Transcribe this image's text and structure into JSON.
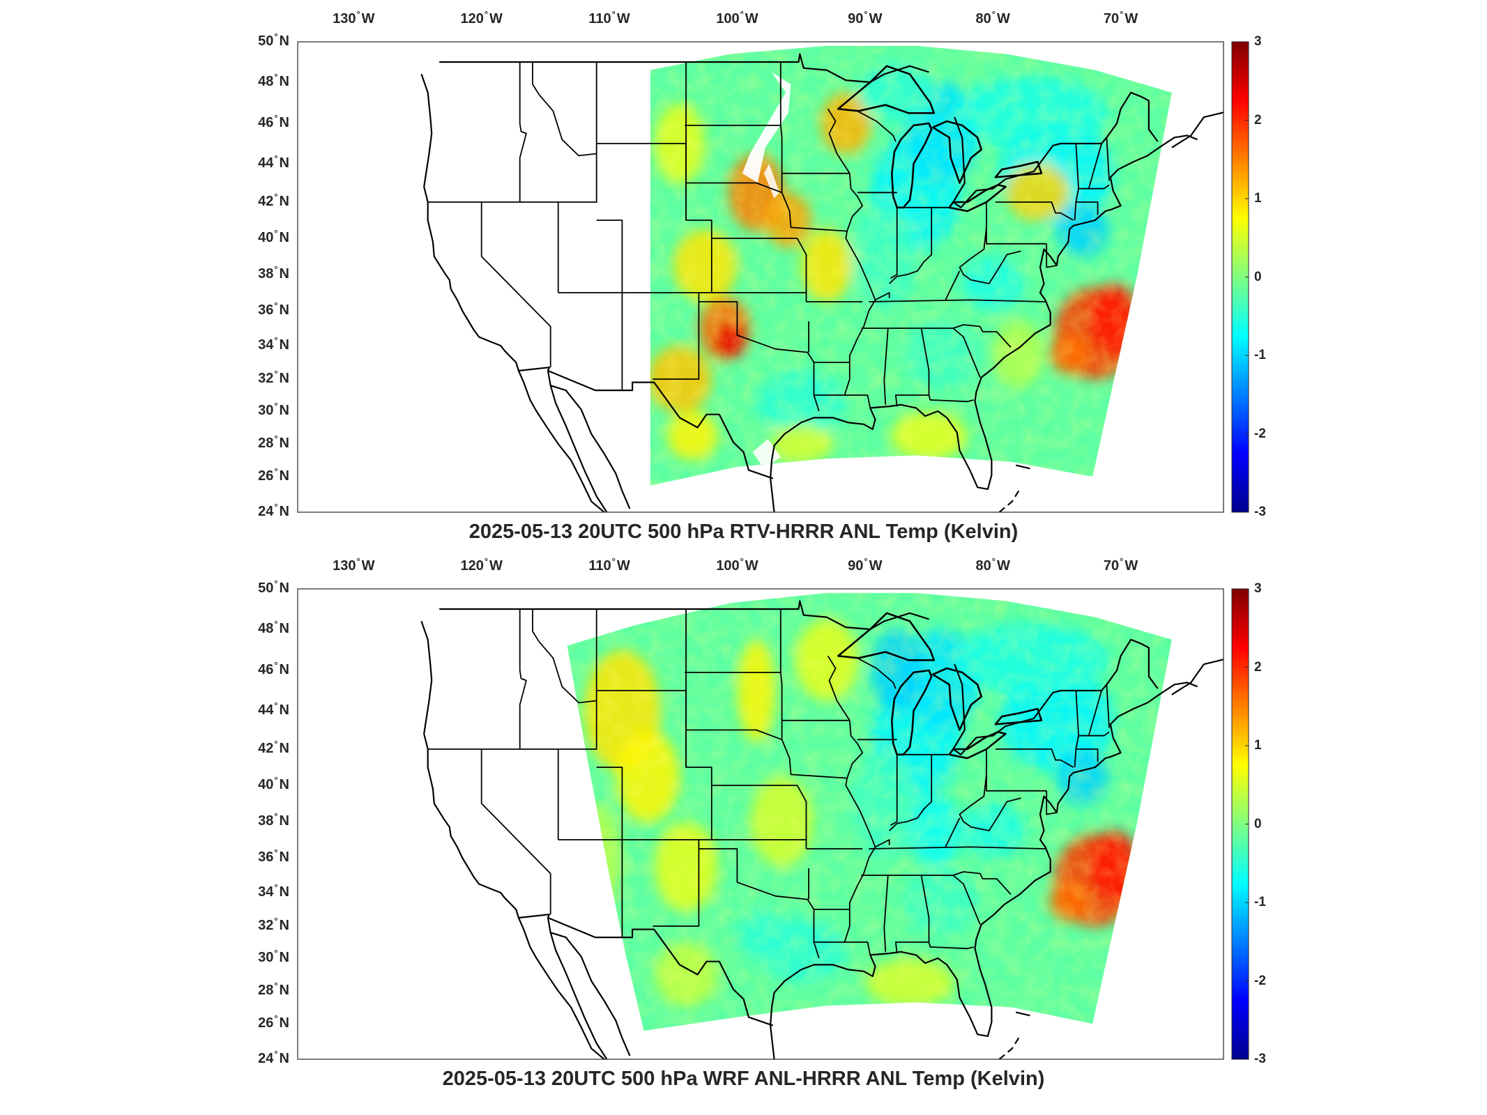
{
  "figure": {
    "panels": [
      {
        "id": "rtv",
        "title": "2025-05-13 20UTC 500 hPa RTV-HRRR ANL Temp (Kelvin)",
        "variant": "rtv",
        "lon_labels": [
          {
            "deg": "130",
            "hemi": "W"
          },
          {
            "deg": "120",
            "hemi": "W"
          },
          {
            "deg": "110",
            "hemi": "W"
          },
          {
            "deg": "100",
            "hemi": "W"
          },
          {
            "deg": "90",
            "hemi": "W"
          },
          {
            "deg": "80",
            "hemi": "W"
          },
          {
            "deg": "70",
            "hemi": "W"
          }
        ],
        "lat_labels": [
          {
            "deg": "50",
            "hemi": "N"
          },
          {
            "deg": "48",
            "hemi": "N"
          },
          {
            "deg": "46",
            "hemi": "N"
          },
          {
            "deg": "44",
            "hemi": "N"
          },
          {
            "deg": "42",
            "hemi": "N"
          },
          {
            "deg": "40",
            "hemi": "N"
          },
          {
            "deg": "38",
            "hemi": "N"
          },
          {
            "deg": "36",
            "hemi": "N"
          },
          {
            "deg": "34",
            "hemi": "N"
          },
          {
            "deg": "32",
            "hemi": "N"
          },
          {
            "deg": "30",
            "hemi": "N"
          },
          {
            "deg": "28",
            "hemi": "N"
          },
          {
            "deg": "26",
            "hemi": "N"
          },
          {
            "deg": "24",
            "hemi": "N"
          }
        ],
        "colorbar_ticks": [
          "3",
          "2",
          "1",
          "0",
          "-1",
          "-2",
          "-3"
        ]
      },
      {
        "id": "wrf",
        "title": "2025-05-13 20UTC 500 hPa WRF ANL-HRRR ANL Temp (Kelvin)",
        "variant": "wrf",
        "lon_labels": [
          {
            "deg": "130",
            "hemi": "W"
          },
          {
            "deg": "120",
            "hemi": "W"
          },
          {
            "deg": "110",
            "hemi": "W"
          },
          {
            "deg": "100",
            "hemi": "W"
          },
          {
            "deg": "90",
            "hemi": "W"
          },
          {
            "deg": "80",
            "hemi": "W"
          },
          {
            "deg": "70",
            "hemi": "W"
          }
        ],
        "lat_labels": [
          {
            "deg": "50",
            "hemi": "N"
          },
          {
            "deg": "48",
            "hemi": "N"
          },
          {
            "deg": "46",
            "hemi": "N"
          },
          {
            "deg": "44",
            "hemi": "N"
          },
          {
            "deg": "42",
            "hemi": "N"
          },
          {
            "deg": "40",
            "hemi": "N"
          },
          {
            "deg": "38",
            "hemi": "N"
          },
          {
            "deg": "36",
            "hemi": "N"
          },
          {
            "deg": "34",
            "hemi": "N"
          },
          {
            "deg": "32",
            "hemi": "N"
          },
          {
            "deg": "30",
            "hemi": "N"
          },
          {
            "deg": "28",
            "hemi": "N"
          },
          {
            "deg": "26",
            "hemi": "N"
          },
          {
            "deg": "24",
            "hemi": "N"
          }
        ],
        "colorbar_ticks": [
          "3",
          "2",
          "1",
          "0",
          "-1",
          "-2",
          "-3"
        ]
      }
    ],
    "colormap": [
      "#00008f",
      "#0000ff",
      "#0080ff",
      "#00ffff",
      "#80ff80",
      "#ffff00",
      "#ff8000",
      "#ff0000",
      "#800000"
    ],
    "colorbar_range": [
      -3,
      3
    ],
    "map_line_color": "#000000"
  }
}
